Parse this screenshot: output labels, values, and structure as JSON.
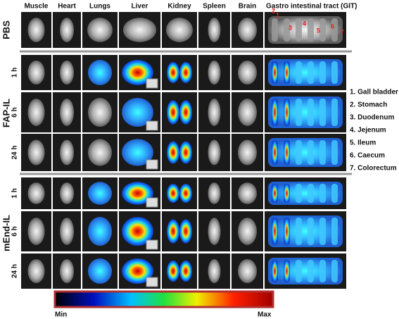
{
  "columns": [
    "Muscle",
    "Heart",
    "Lungs",
    "Liver",
    "Kidney",
    "Spleen",
    "Brain",
    "Gastro intestinal tract (GIT)"
  ],
  "groups": [
    {
      "label": "PBS"
    },
    {
      "label": "FAP-IL",
      "rows": [
        "1 h",
        "6 h",
        "24 h"
      ]
    },
    {
      "label": "mEnd-IL",
      "rows": [
        "1 h",
        "6 h",
        "24 h"
      ]
    }
  ],
  "git_markers": [
    "1",
    "2",
    "3",
    "4",
    "5",
    "6",
    "7"
  ],
  "legend": [
    "1. Gall bladder",
    "2. Stomach",
    "3. Duodenum",
    "4. Jejenum",
    "5. Ileum",
    "6. Caecum",
    "7. Colorectum"
  ],
  "colorbar": {
    "min": "Min",
    "max": "Max"
  }
}
